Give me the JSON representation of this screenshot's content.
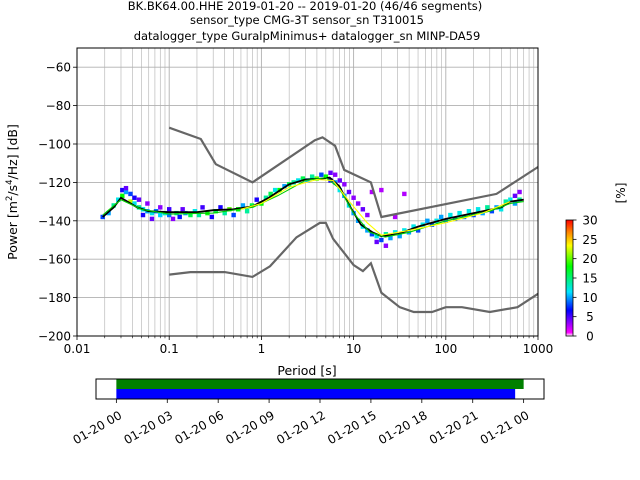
{
  "chart_data": [
    {
      "type": "heatmap",
      "title_lines": [
        "BK.BK64.00.HHE   2019-01-20 -- 2019-01-20  (46/46 segments)",
        "sensor_type CMG-3T sensor_sn T310015",
        "datalogger_type GuralpMinimus+ datalogger_sn MINP-DA59"
      ],
      "xlabel": "Period [s]",
      "ylabel_parts": [
        "Power [m",
        "2",
        "/s",
        "4",
        "/Hz] [dB]"
      ],
      "x_scale": "log",
      "xlim": [
        0.01,
        1000
      ],
      "ylim": [
        -200,
        -50
      ],
      "x_ticks": [
        {
          "value": 0.01,
          "label": "0.01"
        },
        {
          "value": 0.1,
          "label": "0.1"
        },
        {
          "value": 1,
          "label": "1"
        },
        {
          "value": 10,
          "label": "10"
        },
        {
          "value": 100,
          "label": "100"
        },
        {
          "value": 1000,
          "label": "1000"
        }
      ],
      "y_ticks": [
        {
          "value": -60,
          "label": "−60"
        },
        {
          "value": -80,
          "label": "−80"
        },
        {
          "value": -100,
          "label": "−100"
        },
        {
          "value": -120,
          "label": "−120"
        },
        {
          "value": -140,
          "label": "−140"
        },
        {
          "value": -160,
          "label": "−160"
        },
        {
          "value": -180,
          "label": "−180"
        },
        {
          "value": -200,
          "label": "−200"
        }
      ],
      "grid": true,
      "colorbar": {
        "label": "[%]",
        "range": [
          0,
          30
        ],
        "ticks": [
          {
            "value": 0,
            "label": "0"
          },
          {
            "value": 5,
            "label": "5"
          },
          {
            "value": 10,
            "label": "10"
          },
          {
            "value": 15,
            "label": "15"
          },
          {
            "value": 20,
            "label": "20"
          },
          {
            "value": 25,
            "label": "25"
          },
          {
            "value": 30,
            "label": "30"
          }
        ],
        "colors": [
          "#ffffff",
          "#ff00ff",
          "#0000ff",
          "#00e5ff",
          "#00ff00",
          "#ffff00",
          "#ff7f00",
          "#ff0000"
        ]
      },
      "noise_model_high": [
        [
          0.1,
          -91.5
        ],
        [
          0.22,
          -97.4
        ],
        [
          0.32,
          -110.5
        ],
        [
          0.8,
          -120.0
        ],
        [
          3.8,
          -98.0
        ],
        [
          4.6,
          -96.5
        ],
        [
          6.3,
          -101.0
        ],
        [
          7.9,
          -113.5
        ],
        [
          15.4,
          -120.0
        ],
        [
          20.0,
          -138.0
        ],
        [
          354.8,
          -126.0
        ],
        [
          1000,
          -112.0
        ]
      ],
      "noise_model_low": [
        [
          0.1,
          -168.0
        ],
        [
          0.17,
          -166.7
        ],
        [
          0.4,
          -166.7
        ],
        [
          0.8,
          -169.2
        ],
        [
          1.24,
          -163.7
        ],
        [
          2.4,
          -148.6
        ],
        [
          4.3,
          -141.1
        ],
        [
          5.0,
          -141.1
        ],
        [
          6.0,
          -149.4
        ],
        [
          10.0,
          -163.0
        ],
        [
          12.6,
          -166.2
        ],
        [
          15.4,
          -162.1
        ],
        [
          20.0,
          -177.5
        ],
        [
          31.6,
          -185.0
        ],
        [
          45.0,
          -187.5
        ],
        [
          70.8,
          -187.5
        ],
        [
          100.0,
          -185.0
        ],
        [
          150.0,
          -185.0
        ],
        [
          300.0,
          -187.5
        ],
        [
          600.0,
          -185.0
        ],
        [
          1000.0,
          -178.0
        ]
      ],
      "psd_curves": [
        {
          "color": "#000000",
          "points": [
            [
              0.019,
              -138
            ],
            [
              0.025,
              -133
            ],
            [
              0.03,
              -128
            ],
            [
              0.045,
              -133
            ],
            [
              0.06,
              -135
            ],
            [
              0.1,
              -135.5
            ],
            [
              0.2,
              -135.5
            ],
            [
              0.3,
              -134.5
            ],
            [
              0.5,
              -134
            ],
            [
              0.8,
              -132.5
            ],
            [
              1.2,
              -128
            ],
            [
              2.0,
              -121
            ],
            [
              3.0,
              -118.5
            ],
            [
              4.5,
              -118
            ],
            [
              5.5,
              -117.5
            ],
            [
              7.0,
              -122
            ],
            [
              9.0,
              -132
            ],
            [
              12.0,
              -142
            ],
            [
              16.0,
              -146
            ],
            [
              20.0,
              -148
            ],
            [
              30.0,
              -147
            ],
            [
              50.0,
              -143
            ],
            [
              100.0,
              -139
            ],
            [
              200.0,
              -136
            ],
            [
              400.0,
              -133
            ],
            [
              500.0,
              -130
            ],
            [
              700.0,
              -129
            ]
          ]
        },
        {
          "color": "#00cc00",
          "points": [
            [
              0.019,
              -137
            ],
            [
              0.03,
              -129
            ],
            [
              0.05,
              -134
            ],
            [
              0.1,
              -136.5
            ],
            [
              0.3,
              -136
            ],
            [
              0.8,
              -133
            ],
            [
              1.5,
              -127
            ],
            [
              3.0,
              -119
            ],
            [
              5.0,
              -117.5
            ],
            [
              7.0,
              -123
            ],
            [
              10.0,
              -136
            ],
            [
              15.0,
              -146
            ],
            [
              22.0,
              -148.5
            ],
            [
              40.0,
              -146
            ],
            [
              100.0,
              -140
            ],
            [
              300.0,
              -135
            ],
            [
              500.0,
              -131
            ],
            [
              700.0,
              -130
            ]
          ]
        },
        {
          "color": "#ffff00",
          "points": [
            [
              0.6,
              -134
            ],
            [
              1.0,
              -131
            ],
            [
              2.0,
              -122.5
            ],
            [
              4.0,
              -118.5
            ],
            [
              6.0,
              -119
            ],
            [
              9.0,
              -130
            ],
            [
              14.0,
              -141
            ],
            [
              20.0,
              -147.5
            ],
            [
              40.0,
              -145
            ],
            [
              100.0,
              -141
            ],
            [
              250.0,
              -136
            ],
            [
              500.0,
              -130
            ]
          ]
        }
      ],
      "density_cells": [
        {
          "x": 0.019,
          "y": -138,
          "pct": 8
        },
        {
          "x": 0.022,
          "y": -136,
          "pct": 10
        },
        {
          "x": 0.025,
          "y": -132,
          "pct": 14
        },
        {
          "x": 0.028,
          "y": -129,
          "pct": 12
        },
        {
          "x": 0.031,
          "y": -124,
          "pct": 6
        },
        {
          "x": 0.031,
          "y": -127,
          "pct": 18
        },
        {
          "x": 0.034,
          "y": -125,
          "pct": 10
        },
        {
          "x": 0.034,
          "y": -123,
          "pct": 4
        },
        {
          "x": 0.038,
          "y": -126,
          "pct": 8
        },
        {
          "x": 0.038,
          "y": -130,
          "pct": 22
        },
        {
          "x": 0.042,
          "y": -131,
          "pct": 12
        },
        {
          "x": 0.042,
          "y": -128,
          "pct": 6
        },
        {
          "x": 0.047,
          "y": -133,
          "pct": 14
        },
        {
          "x": 0.047,
          "y": -129,
          "pct": 4
        },
        {
          "x": 0.052,
          "y": -134,
          "pct": 12
        },
        {
          "x": 0.052,
          "y": -137,
          "pct": 6
        },
        {
          "x": 0.058,
          "y": -135,
          "pct": 10
        },
        {
          "x": 0.058,
          "y": -131,
          "pct": 3
        },
        {
          "x": 0.065,
          "y": -136,
          "pct": 12
        },
        {
          "x": 0.065,
          "y": -139,
          "pct": 4
        },
        {
          "x": 0.072,
          "y": -135,
          "pct": 9
        },
        {
          "x": 0.08,
          "y": -137,
          "pct": 11
        },
        {
          "x": 0.08,
          "y": -133,
          "pct": 3
        },
        {
          "x": 0.09,
          "y": -136,
          "pct": 13
        },
        {
          "x": 0.1,
          "y": -137,
          "pct": 9
        },
        {
          "x": 0.1,
          "y": -134,
          "pct": 5
        },
        {
          "x": 0.11,
          "y": -139,
          "pct": 3
        },
        {
          "x": 0.12,
          "y": -136,
          "pct": 14
        },
        {
          "x": 0.13,
          "y": -138,
          "pct": 7
        },
        {
          "x": 0.14,
          "y": -134,
          "pct": 4
        },
        {
          "x": 0.15,
          "y": -136,
          "pct": 10
        },
        {
          "x": 0.17,
          "y": -137,
          "pct": 16
        },
        {
          "x": 0.19,
          "y": -135,
          "pct": 12
        },
        {
          "x": 0.21,
          "y": -137,
          "pct": 14
        },
        {
          "x": 0.23,
          "y": -133,
          "pct": 5
        },
        {
          "x": 0.26,
          "y": -136,
          "pct": 18
        },
        {
          "x": 0.29,
          "y": -138,
          "pct": 6
        },
        {
          "x": 0.32,
          "y": -135,
          "pct": 16
        },
        {
          "x": 0.36,
          "y": -133,
          "pct": 6
        },
        {
          "x": 0.4,
          "y": -136,
          "pct": 14
        },
        {
          "x": 0.45,
          "y": -134,
          "pct": 20
        },
        {
          "x": 0.5,
          "y": -137,
          "pct": 8
        },
        {
          "x": 0.56,
          "y": -134,
          "pct": 18
        },
        {
          "x": 0.63,
          "y": -132,
          "pct": 10
        },
        {
          "x": 0.7,
          "y": -135,
          "pct": 14
        },
        {
          "x": 0.79,
          "y": -132,
          "pct": 16
        },
        {
          "x": 0.89,
          "y": -129,
          "pct": 6
        },
        {
          "x": 1.0,
          "y": -131,
          "pct": 18
        },
        {
          "x": 1.12,
          "y": -128,
          "pct": 14
        },
        {
          "x": 1.26,
          "y": -126,
          "pct": 16
        },
        {
          "x": 1.41,
          "y": -124,
          "pct": 12
        },
        {
          "x": 1.58,
          "y": -124,
          "pct": 18
        },
        {
          "x": 1.78,
          "y": -122,
          "pct": 10
        },
        {
          "x": 2.0,
          "y": -121,
          "pct": 16
        },
        {
          "x": 2.24,
          "y": -120,
          "pct": 14
        },
        {
          "x": 2.51,
          "y": -119,
          "pct": 12
        },
        {
          "x": 2.82,
          "y": -118,
          "pct": 16
        },
        {
          "x": 3.16,
          "y": -119,
          "pct": 10
        },
        {
          "x": 3.55,
          "y": -117,
          "pct": 14
        },
        {
          "x": 3.98,
          "y": -118,
          "pct": 20
        },
        {
          "x": 4.47,
          "y": -116,
          "pct": 8
        },
        {
          "x": 5.01,
          "y": -117,
          "pct": 18
        },
        {
          "x": 5.62,
          "y": -115,
          "pct": 4
        },
        {
          "x": 5.62,
          "y": -119,
          "pct": 6
        },
        {
          "x": 6.31,
          "y": -120,
          "pct": 10
        },
        {
          "x": 6.31,
          "y": -116,
          "pct": 3
        },
        {
          "x": 7.08,
          "y": -124,
          "pct": 12
        },
        {
          "x": 7.08,
          "y": -119,
          "pct": 4
        },
        {
          "x": 7.94,
          "y": -127,
          "pct": 10
        },
        {
          "x": 7.94,
          "y": -121,
          "pct": 3
        },
        {
          "x": 8.91,
          "y": -132,
          "pct": 12
        },
        {
          "x": 8.91,
          "y": -125,
          "pct": 4
        },
        {
          "x": 10.0,
          "y": -136,
          "pct": 10
        },
        {
          "x": 10.0,
          "y": -128,
          "pct": 3
        },
        {
          "x": 11.2,
          "y": -140,
          "pct": 10
        },
        {
          "x": 11.2,
          "y": -131,
          "pct": 3
        },
        {
          "x": 12.6,
          "y": -143,
          "pct": 12
        },
        {
          "x": 12.6,
          "y": -134,
          "pct": 4
        },
        {
          "x": 14.1,
          "y": -145,
          "pct": 10
        },
        {
          "x": 14.1,
          "y": -137,
          "pct": 3
        },
        {
          "x": 15.8,
          "y": -147,
          "pct": 8
        },
        {
          "x": 15.8,
          "y": -125,
          "pct": 2
        },
        {
          "x": 17.8,
          "y": -148,
          "pct": 12
        },
        {
          "x": 17.8,
          "y": -151,
          "pct": 4
        },
        {
          "x": 20.0,
          "y": -150,
          "pct": 8
        },
        {
          "x": 20.0,
          "y": -124,
          "pct": 2
        },
        {
          "x": 22.4,
          "y": -147,
          "pct": 14
        },
        {
          "x": 22.4,
          "y": -153,
          "pct": 3
        },
        {
          "x": 25.1,
          "y": -149,
          "pct": 10
        },
        {
          "x": 28.2,
          "y": -146,
          "pct": 12
        },
        {
          "x": 28.2,
          "y": -138,
          "pct": 2
        },
        {
          "x": 31.6,
          "y": -148,
          "pct": 10
        },
        {
          "x": 35.5,
          "y": -145,
          "pct": 12
        },
        {
          "x": 35.5,
          "y": -126,
          "pct": 2
        },
        {
          "x": 39.8,
          "y": -146,
          "pct": 10
        },
        {
          "x": 44.7,
          "y": -143,
          "pct": 12
        },
        {
          "x": 50.1,
          "y": -145,
          "pct": 8
        },
        {
          "x": 56.2,
          "y": -142,
          "pct": 12
        },
        {
          "x": 63.1,
          "y": -140,
          "pct": 10
        },
        {
          "x": 70.8,
          "y": -142,
          "pct": 8
        },
        {
          "x": 79.4,
          "y": -140,
          "pct": 12
        },
        {
          "x": 89.1,
          "y": -138,
          "pct": 10
        },
        {
          "x": 100,
          "y": -140,
          "pct": 9
        },
        {
          "x": 112,
          "y": -137,
          "pct": 12
        },
        {
          "x": 126,
          "y": -139,
          "pct": 8
        },
        {
          "x": 141,
          "y": -136,
          "pct": 12
        },
        {
          "x": 158,
          "y": -138,
          "pct": 9
        },
        {
          "x": 178,
          "y": -135,
          "pct": 12
        },
        {
          "x": 200,
          "y": -137,
          "pct": 8
        },
        {
          "x": 224,
          "y": -134,
          "pct": 12
        },
        {
          "x": 251,
          "y": -136,
          "pct": 10
        },
        {
          "x": 282,
          "y": -133,
          "pct": 14
        },
        {
          "x": 316,
          "y": -135,
          "pct": 8
        },
        {
          "x": 355,
          "y": -133,
          "pct": 10
        },
        {
          "x": 398,
          "y": -134,
          "pct": 12
        },
        {
          "x": 447,
          "y": -130,
          "pct": 14
        },
        {
          "x": 501,
          "y": -129,
          "pct": 12
        },
        {
          "x": 562,
          "y": -127,
          "pct": 4
        },
        {
          "x": 562,
          "y": -131,
          "pct": 10
        },
        {
          "x": 631,
          "y": -129,
          "pct": 14
        },
        {
          "x": 631,
          "y": -125,
          "pct": 3
        }
      ]
    },
    {
      "type": "timeline",
      "x_ticks": [
        {
          "value": 0,
          "label": "01-20 00"
        },
        {
          "value": 3,
          "label": "01-20 03"
        },
        {
          "value": 6,
          "label": "01-20 06"
        },
        {
          "value": 9,
          "label": "01-20 09"
        },
        {
          "value": 12,
          "label": "01-20 12"
        },
        {
          "value": 15,
          "label": "01-20 15"
        },
        {
          "value": 18,
          "label": "01-20 18"
        },
        {
          "value": 21,
          "label": "01-20 21"
        },
        {
          "value": 24,
          "label": "01-21 00"
        }
      ],
      "xlim": [
        -1.2,
        25.2
      ],
      "bars": [
        {
          "color": "#008000",
          "start_hour": 0,
          "end_hour": 24.0
        },
        {
          "color": "#0000ff",
          "start_hour": 0,
          "end_hour": 23.5
        }
      ]
    }
  ]
}
